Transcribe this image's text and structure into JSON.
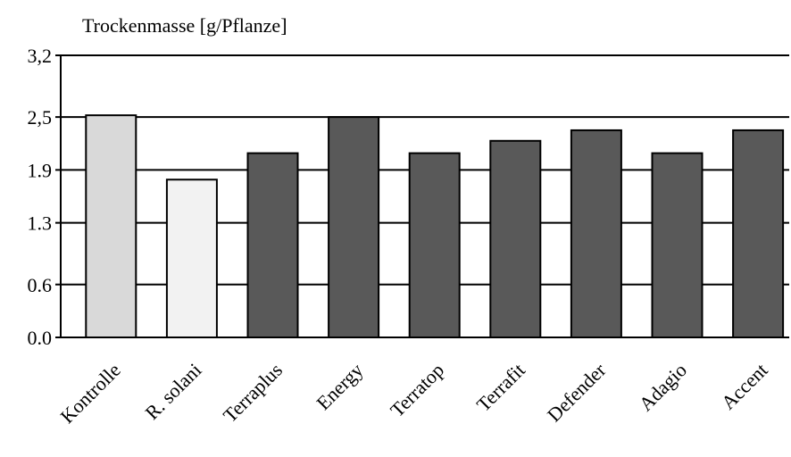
{
  "chart_data": {
    "type": "bar",
    "ylabel": "Trockenmasse [g/Pflanze]",
    "categories": [
      "Kontrolle",
      "R. solani",
      "Terraplus",
      "Energy",
      "Terratop",
      "Terrafit",
      "Defender",
      "Adagio",
      "Accent"
    ],
    "values": [
      2.52,
      1.79,
      2.09,
      2.5,
      2.09,
      2.23,
      2.35,
      2.09,
      2.35
    ],
    "colors": [
      "#d9d9d9",
      "#f2f2f2",
      "#595959",
      "#595959",
      "#595959",
      "#595959",
      "#595959",
      "#595959",
      "#595959"
    ],
    "ylim": [
      0,
      3.2
    ],
    "yticks": [
      {
        "value": 0,
        "label": "0.0"
      },
      0.6,
      1.3,
      1.9,
      {
        "value": 2.5,
        "label": "2,5"
      },
      {
        "value": 3.2,
        "label": "3,2"
      }
    ],
    "grid": true
  }
}
